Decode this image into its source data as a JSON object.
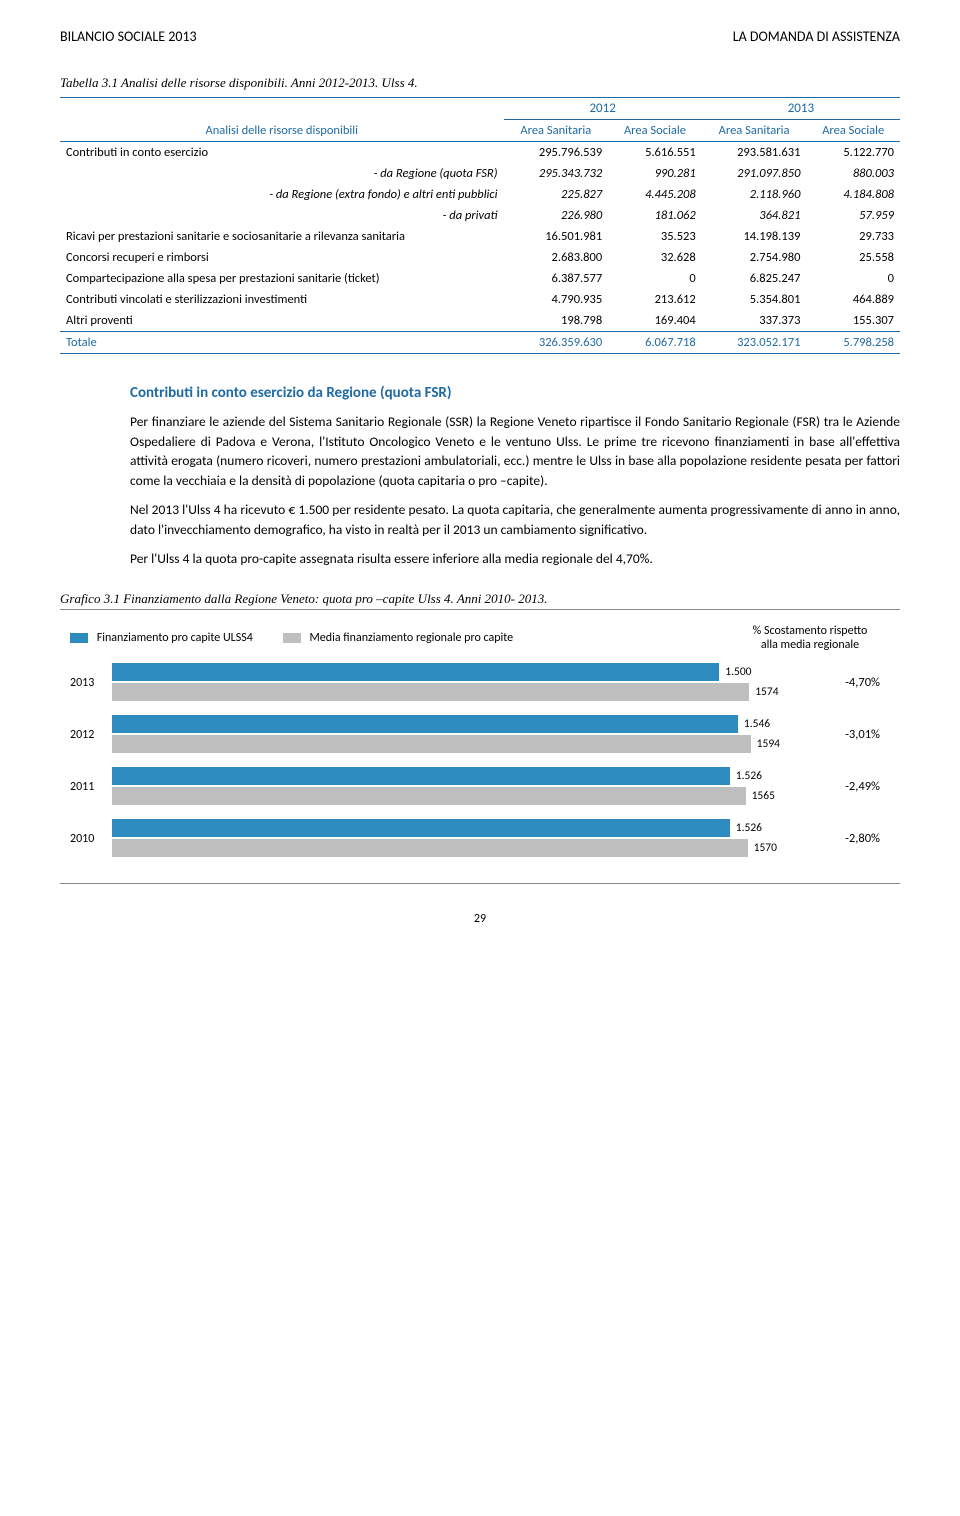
{
  "header": {
    "left": "BILANCIO SOCIALE 2013",
    "right": "LA DOMANDA DI ASSISTENZA"
  },
  "table": {
    "caption": "Tabella 3.1 Analisi delle risorse disponibili. Anni 2012-2013. Ulss 4.",
    "col_group_1": "2012",
    "col_group_2": "2013",
    "col_sub_a": "Area Sanitaria",
    "col_sub_b": "Area Sociale",
    "row_head": "Analisi delle risorse disponibili",
    "rows": [
      {
        "label": "Contributi in conto esercizio",
        "v": [
          "295.796.539",
          "5.616.551",
          "293.581.631",
          "5.122.770"
        ],
        "ital": false,
        "indent": false
      },
      {
        "label": "- da Regione (quota FSR)",
        "v": [
          "295.343.732",
          "990.281",
          "291.097.850",
          "880.003"
        ],
        "ital": true,
        "indent": true
      },
      {
        "label": "- da Regione (extra fondo) e altri enti pubblici",
        "v": [
          "225.827",
          "4.445.208",
          "2.118.960",
          "4.184.808"
        ],
        "ital": true,
        "indent": true
      },
      {
        "label": "- da privati",
        "v": [
          "226.980",
          "181.062",
          "364.821",
          "57.959"
        ],
        "ital": true,
        "indent": true
      },
      {
        "label": "Ricavi per prestazioni sanitarie e sociosanitarie a rilevanza sanitaria",
        "v": [
          "16.501.981",
          "35.523",
          "14.198.139",
          "29.733"
        ],
        "ital": false,
        "indent": false
      },
      {
        "label": "Concorsi recuperi e rimborsi",
        "v": [
          "2.683.800",
          "32.628",
          "2.754.980",
          "25.558"
        ],
        "ital": false,
        "indent": false
      },
      {
        "label": "Compartecipazione alla spesa per prestazioni sanitarie (ticket)",
        "v": [
          "6.387.577",
          "0",
          "6.825.247",
          "0"
        ],
        "ital": false,
        "indent": false
      },
      {
        "label": "Contributi vincolati  e sterilizzazioni investimenti",
        "v": [
          "4.790.935",
          "213.612",
          "5.354.801",
          "464.889"
        ],
        "ital": false,
        "indent": false
      },
      {
        "label": "Altri proventi",
        "v": [
          "198.798",
          "169.404",
          "337.373",
          "155.307"
        ],
        "ital": false,
        "indent": false
      }
    ],
    "total": {
      "label": "Totale",
      "v": [
        "326.359.630",
        "6.067.718",
        "323.052.171",
        "5.798.258"
      ]
    },
    "colors": {
      "rule": "#1f6aa5",
      "header_text": "#1f6aa5"
    }
  },
  "section": {
    "title": "Contributi in conto esercizio da Regione (quota FSR)",
    "paragraphs": [
      "Per finanziare le aziende del Sistema Sanitario Regionale (SSR) la Regione Veneto ripartisce il Fondo Sanitario Regionale (FSR) tra le Aziende Ospedaliere di Padova e Verona, l'Istituto Oncologico Veneto e le ventuno Ulss. Le prime tre ricevono finanziamenti in base all'effettiva attività erogata (numero ricoveri, numero prestazioni ambulatoriali, ecc.) mentre le Ulss in base alla popolazione residente pesata per fattori come la vecchiaia e la densità di popolazione (quota capitaria o pro –capite).",
      "Nel 2013 l'Ulss 4 ha ricevuto € 1.500 per residente pesato. La quota capitaria, che generalmente aumenta progressivamente di anno in anno, dato l'invecchiamento demografico, ha visto in realtà per il 2013 un cambiamento significativo.",
      "Per l'Ulss 4 la quota pro-capite assegnata risulta essere inferiore alla media regionale del 4,70%."
    ]
  },
  "chart": {
    "caption": "Grafico 3.1 Finanziamento dalla Regione Veneto: quota pro –capite Ulss 4. Anni 2010- 2013.",
    "legend_a": "Finanziamento pro capite ULSS4",
    "legend_b": "Media finanziamento regionale pro capite",
    "right_head_line1": "% Scostamento rispetto",
    "right_head_line2": "alla media regionale",
    "color_a": "#2e8bc0",
    "color_b": "#bfbfbf",
    "max_value": 1650,
    "rows": [
      {
        "year": "2013",
        "a": 1500,
        "a_label": "1.500",
        "b": 1574,
        "b_label": "1574",
        "scost": "-4,70%"
      },
      {
        "year": "2012",
        "a": 1546,
        "a_label": "1.546",
        "b": 1594,
        "b_label": "1594",
        "scost": "-3,01%"
      },
      {
        "year": "2011",
        "a": 1526,
        "a_label": "1.526",
        "b": 1565,
        "b_label": "1565",
        "scost": "-2,49%"
      },
      {
        "year": "2010",
        "a": 1526,
        "a_label": "1.526",
        "b": 1570,
        "b_label": "1570",
        "scost": "-2,80%"
      }
    ]
  },
  "page_number": "29"
}
